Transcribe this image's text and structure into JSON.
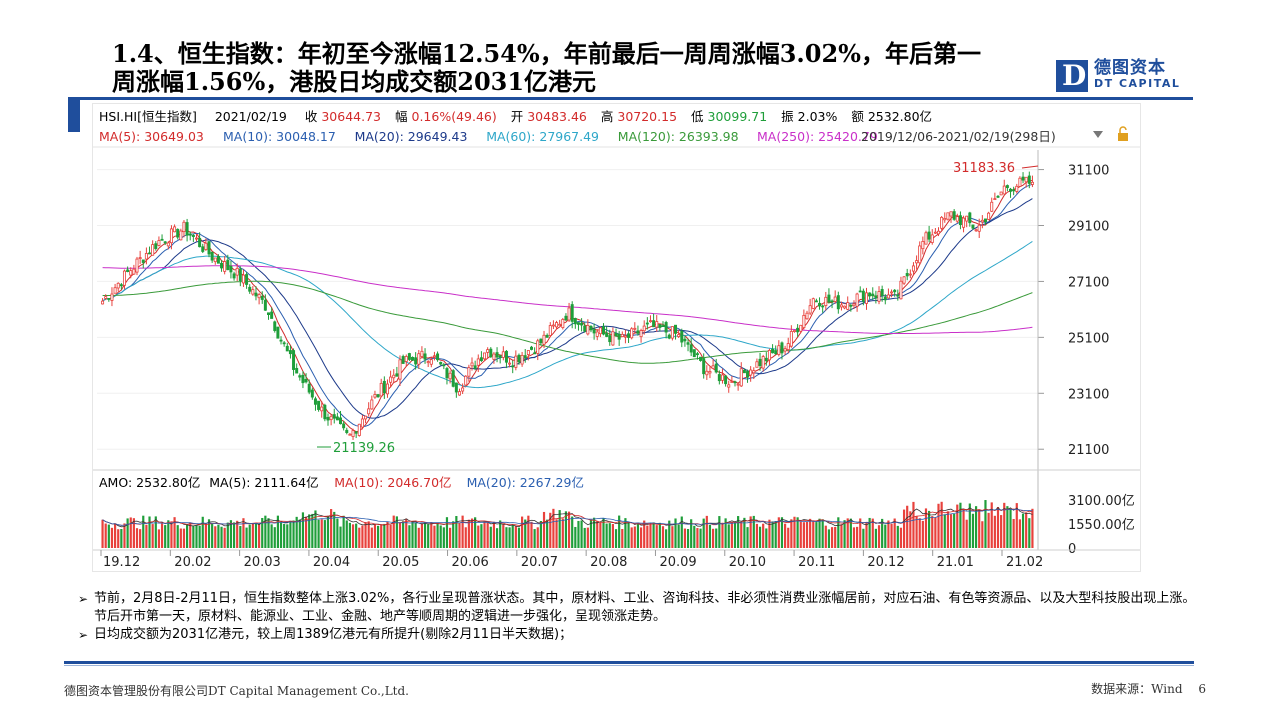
{
  "slide": {
    "title_line1": "1.4、恒生指数：年初至今涨幅12.54%，年前最后一周周涨幅3.02%，年后第一",
    "title_line2": "周涨幅1.56%，港股日均成交额2031亿港元",
    "page_number": "6"
  },
  "logo": {
    "cn": "德图资本",
    "en": "DT CAPITAL"
  },
  "chart_header": {
    "code": "HSI.HI[恒生指数]",
    "date": "2021/02/19",
    "close_label": "收",
    "close_value": "30644.73",
    "change_label": "幅",
    "change_value": "0.16%(49.46)",
    "open_label": "开",
    "open_value": "30483.46",
    "high_label": "高",
    "high_value": "30720.15",
    "low_label": "低",
    "low_value": "30099.71",
    "amp_label": "振",
    "amp_value": "2.03%",
    "amount_label": "额",
    "amount_value": "2532.80亿"
  },
  "ma_legend": [
    {
      "label": "MA(5): 30649.03",
      "color": "#d22b2b"
    },
    {
      "label": "MA(10): 30048.17",
      "color": "#2b5fb0"
    },
    {
      "label": "MA(20): 29649.43",
      "color": "#1d3a8a"
    },
    {
      "label": "MA(60): 27967.49",
      "color": "#2ea7c9"
    },
    {
      "label": "MA(120): 26393.98",
      "color": "#3a9a3a"
    },
    {
      "label": "MA(250): 25420.79",
      "color": "#c930c9"
    }
  ],
  "range_label": "2019/12/06-2021/02/19(298日)",
  "price_axis": [
    "31100",
    "29100",
    "27100",
    "25100",
    "23100",
    "21100"
  ],
  "annotations": {
    "high": "31183.36",
    "low": "21139.26"
  },
  "volume_header": [
    {
      "label": "AMO: 2532.80亿",
      "color": "#000000"
    },
    {
      "label": "MA(5): 2111.64亿",
      "color": "#000000"
    },
    {
      "label": "MA(10): 2046.70亿",
      "color": "#d22b2b"
    },
    {
      "label": "MA(20): 2267.29亿",
      "color": "#2b5fb0"
    }
  ],
  "volume_axis": [
    "3100.00亿",
    "1550.00亿",
    "0"
  ],
  "x_axis": [
    "19.12",
    "20.02",
    "20.03",
    "20.04",
    "20.05",
    "20.06",
    "20.07",
    "20.08",
    "20.09",
    "20.10",
    "20.11",
    "20.12",
    "21.01",
    "21.02"
  ],
  "colors": {
    "up": "#e8413c",
    "down": "#1f9e3a",
    "brand": "#1f4e9c"
  },
  "bullets": [
    "节前，2月8日-2月11日，恒生指数整体上涨3.02%，各行业呈现普涨状态。其中，原材料、工业、咨询科技、非必须性消费业涨幅居前，对应石油、有色等资源品、以及大型科技股出现上涨。节后开市第一天，原材料、能源业、工业、金融、地产等顺周期的逻辑进一步强化，呈现领涨走势。",
    "日均成交额为2031亿港元，较上周1389亿港元有所提升(剔除2月11日半天数据)；"
  ],
  "footer": {
    "company": "德图资本管理股份有限公司DT  Capital Management Co.,Ltd.",
    "source": "数据来源：Wind"
  },
  "chart_data": {
    "type": "candlestick",
    "price_series": {
      "name": "HSI.HI",
      "x_range": [
        "2019/12/06",
        "2021/02/19"
      ],
      "approx_close_path": [
        26400,
        27500,
        28500,
        29000,
        28000,
        27300,
        26200,
        24000,
        22500,
        21500,
        23000,
        24200,
        24500,
        23300,
        24700,
        24300,
        24900,
        26000,
        25300,
        25000,
        25500,
        25200,
        24000,
        23500,
        24200,
        24800,
        26500,
        26300,
        26700,
        26500,
        28500,
        29500,
        29000,
        30500,
        30645
      ],
      "ylim": [
        20500,
        31800
      ],
      "high_annotation": 31183.36,
      "low_annotation": 21139.26
    },
    "volume": {
      "unit": "亿",
      "ylim": [
        0,
        3100
      ],
      "last": 2532.8
    }
  }
}
